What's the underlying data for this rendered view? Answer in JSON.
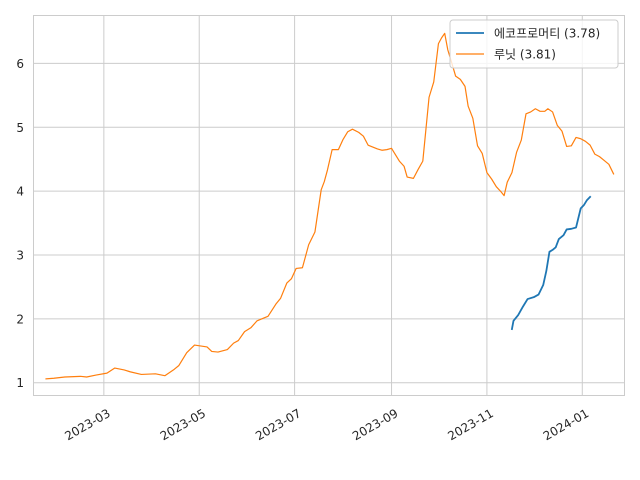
{
  "chart_data": {
    "type": "line",
    "title": "",
    "xlabel": "",
    "ylabel": "",
    "grid": true,
    "legend_position": "top-right",
    "xlim": [
      "2023-01-15",
      "2024-01-28"
    ],
    "ylim": [
      0.8,
      6.75
    ],
    "x_ticks": [
      {
        "date": "2023-03-01",
        "label": "2023-03"
      },
      {
        "date": "2023-05-01",
        "label": "2023-05"
      },
      {
        "date": "2023-07-01",
        "label": "2023-07"
      },
      {
        "date": "2023-09-01",
        "label": "2023-09"
      },
      {
        "date": "2023-11-01",
        "label": "2023-11"
      },
      {
        "date": "2024-01-01",
        "label": "2024-01"
      }
    ],
    "y_ticks": [
      {
        "value": 1,
        "label": "1"
      },
      {
        "value": 2,
        "label": "2"
      },
      {
        "value": 3,
        "label": "3"
      },
      {
        "value": 4,
        "label": "4"
      },
      {
        "value": 5,
        "label": "5"
      },
      {
        "value": 6,
        "label": "6"
      }
    ],
    "series": [
      {
        "name": "에코프로머티 (3.78)",
        "color": "#1f77b4",
        "points": [
          [
            "2023-11-17",
            1.84
          ],
          [
            "2023-11-18",
            1.97
          ],
          [
            "2023-11-21",
            2.06
          ],
          [
            "2023-11-24",
            2.19
          ],
          [
            "2023-11-27",
            2.31
          ],
          [
            "2023-12-01",
            2.34
          ],
          [
            "2023-12-04",
            2.38
          ],
          [
            "2023-12-07",
            2.53
          ],
          [
            "2023-12-09",
            2.75
          ],
          [
            "2023-12-11",
            3.05
          ],
          [
            "2023-12-13",
            3.08
          ],
          [
            "2023-12-15",
            3.12
          ],
          [
            "2023-12-17",
            3.25
          ],
          [
            "2023-12-20",
            3.31
          ],
          [
            "2023-12-22",
            3.4
          ],
          [
            "2023-12-25",
            3.41
          ],
          [
            "2023-12-28",
            3.43
          ],
          [
            "2023-12-31",
            3.73
          ],
          [
            "2024-01-02",
            3.78
          ],
          [
            "2024-01-04",
            3.86
          ],
          [
            "2024-01-06",
            3.91
          ]
        ]
      },
      {
        "name": "루닛 (3.81)",
        "color": "#ff7f0e",
        "points": [
          [
            "2023-01-23",
            1.06
          ],
          [
            "2023-01-28",
            1.07
          ],
          [
            "2023-02-04",
            1.09
          ],
          [
            "2023-02-14",
            1.1
          ],
          [
            "2023-02-18",
            1.09
          ],
          [
            "2023-02-24",
            1.12
          ],
          [
            "2023-03-03",
            1.15
          ],
          [
            "2023-03-08",
            1.23
          ],
          [
            "2023-03-14",
            1.2
          ],
          [
            "2023-03-18",
            1.17
          ],
          [
            "2023-03-25",
            1.13
          ],
          [
            "2023-04-03",
            1.14
          ],
          [
            "2023-04-09",
            1.11
          ],
          [
            "2023-04-15",
            1.21
          ],
          [
            "2023-04-18",
            1.27
          ],
          [
            "2023-04-23",
            1.47
          ],
          [
            "2023-04-28",
            1.59
          ],
          [
            "2023-05-06",
            1.56
          ],
          [
            "2023-05-09",
            1.49
          ],
          [
            "2023-05-13",
            1.48
          ],
          [
            "2023-05-19",
            1.52
          ],
          [
            "2023-05-23",
            1.62
          ],
          [
            "2023-05-26",
            1.66
          ],
          [
            "2023-05-30",
            1.8
          ],
          [
            "2023-06-03",
            1.86
          ],
          [
            "2023-06-07",
            1.97
          ],
          [
            "2023-06-12",
            2.02
          ],
          [
            "2023-06-14",
            2.04
          ],
          [
            "2023-06-19",
            2.23
          ],
          [
            "2023-06-22",
            2.32
          ],
          [
            "2023-06-26",
            2.56
          ],
          [
            "2023-06-29",
            2.63
          ],
          [
            "2023-07-02",
            2.79
          ],
          [
            "2023-07-06",
            2.8
          ],
          [
            "2023-07-10",
            3.16
          ],
          [
            "2023-07-14",
            3.36
          ],
          [
            "2023-07-18",
            4.02
          ],
          [
            "2023-07-20",
            4.15
          ],
          [
            "2023-07-22",
            4.33
          ],
          [
            "2023-07-25",
            4.65
          ],
          [
            "2023-07-29",
            4.65
          ],
          [
            "2023-08-01",
            4.81
          ],
          [
            "2023-08-04",
            4.93
          ],
          [
            "2023-08-07",
            4.97
          ],
          [
            "2023-08-11",
            4.92
          ],
          [
            "2023-08-14",
            4.86
          ],
          [
            "2023-08-17",
            4.72
          ],
          [
            "2023-08-20",
            4.69
          ],
          [
            "2023-08-23",
            4.66
          ],
          [
            "2023-08-26",
            4.64
          ],
          [
            "2023-08-29",
            4.65
          ],
          [
            "2023-09-01",
            4.67
          ],
          [
            "2023-09-03",
            4.59
          ],
          [
            "2023-09-06",
            4.47
          ],
          [
            "2023-09-09",
            4.39
          ],
          [
            "2023-09-11",
            4.22
          ],
          [
            "2023-09-15",
            4.2
          ],
          [
            "2023-09-18",
            4.34
          ],
          [
            "2023-09-21",
            4.47
          ],
          [
            "2023-09-25",
            5.47
          ],
          [
            "2023-09-28",
            5.71
          ],
          [
            "2023-10-01",
            6.31
          ],
          [
            "2023-10-03",
            6.4
          ],
          [
            "2023-10-05",
            6.47
          ],
          [
            "2023-10-07",
            6.21
          ],
          [
            "2023-10-09",
            6.05
          ],
          [
            "2023-10-12",
            5.8
          ],
          [
            "2023-10-15",
            5.75
          ],
          [
            "2023-10-18",
            5.64
          ],
          [
            "2023-10-20",
            5.33
          ],
          [
            "2023-10-23",
            5.14
          ],
          [
            "2023-10-26",
            4.71
          ],
          [
            "2023-10-29",
            4.59
          ],
          [
            "2023-11-01",
            4.29
          ],
          [
            "2023-11-04",
            4.19
          ],
          [
            "2023-11-07",
            4.07
          ],
          [
            "2023-11-10",
            3.99
          ],
          [
            "2023-11-12",
            3.93
          ],
          [
            "2023-11-14",
            4.14
          ],
          [
            "2023-11-17",
            4.29
          ],
          [
            "2023-11-20",
            4.61
          ],
          [
            "2023-11-23",
            4.8
          ],
          [
            "2023-11-26",
            5.21
          ],
          [
            "2023-11-29",
            5.24
          ],
          [
            "2023-12-02",
            5.29
          ],
          [
            "2023-12-05",
            5.25
          ],
          [
            "2023-12-08",
            5.25
          ],
          [
            "2023-12-10",
            5.29
          ],
          [
            "2023-12-13",
            5.24
          ],
          [
            "2023-12-16",
            5.03
          ],
          [
            "2023-12-19",
            4.94
          ],
          [
            "2023-12-22",
            4.7
          ],
          [
            "2023-12-25",
            4.71
          ],
          [
            "2023-12-28",
            4.84
          ],
          [
            "2023-12-31",
            4.82
          ],
          [
            "2024-01-03",
            4.78
          ],
          [
            "2024-01-06",
            4.72
          ],
          [
            "2024-01-09",
            4.58
          ],
          [
            "2024-01-12",
            4.54
          ],
          [
            "2024-01-15",
            4.48
          ],
          [
            "2024-01-18",
            4.42
          ],
          [
            "2024-01-21",
            4.27
          ]
        ]
      }
    ]
  }
}
